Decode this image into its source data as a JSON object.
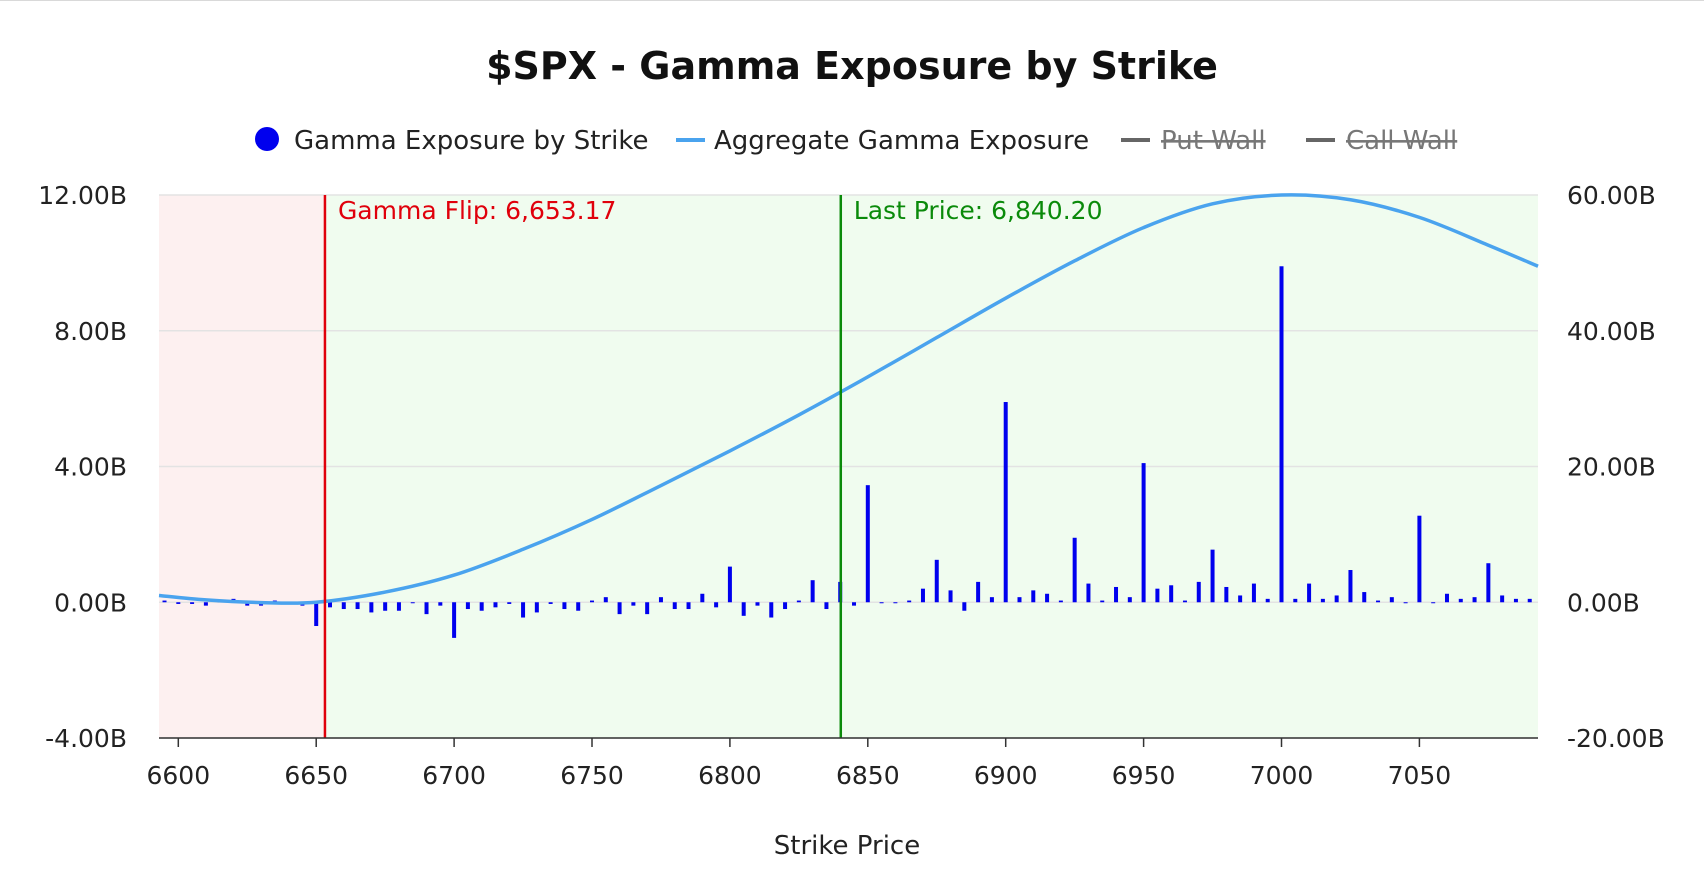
{
  "chart_data": {
    "type": "bar",
    "title": "$SPX - Gamma Exposure by Strike",
    "xlabel": "Strike Price",
    "ylabel_left": "",
    "ylabel_right": "",
    "xlim": [
      6593,
      7093
    ],
    "ylim_left": [
      -4,
      12
    ],
    "ylim_right": [
      -20,
      60
    ],
    "x_ticks": [
      6600,
      6650,
      6700,
      6750,
      6800,
      6850,
      6900,
      6950,
      7000,
      7050
    ],
    "x_tick_labels": [
      "6600",
      "6650",
      "6700",
      "6750",
      "6800",
      "6850",
      "6900",
      "6950",
      "7000",
      "7050"
    ],
    "y_left_ticks": [
      -4,
      0,
      4,
      8,
      12
    ],
    "y_left_tick_labels": [
      "-4.00B",
      "0.00B",
      "4.00B",
      "8.00B",
      "12.00B"
    ],
    "y_right_ticks": [
      -20,
      0,
      20,
      40,
      60
    ],
    "y_right_tick_labels": [
      "-20.00B",
      "0.00B",
      "20.00B",
      "40.00B",
      "60.00B"
    ],
    "grid": true,
    "legend_position": "top-center",
    "legend": [
      {
        "label": "Gamma Exposure by Strike",
        "symbol": "dot",
        "color": "#0000ee",
        "hidden": false
      },
      {
        "label": "Aggregate Gamma Exposure",
        "symbol": "line",
        "color": "#4aa3ee",
        "hidden": false
      },
      {
        "label": "Put Wall",
        "symbol": "line",
        "color": "#666666",
        "hidden": true
      },
      {
        "label": "Call Wall",
        "symbol": "line",
        "color": "#666666",
        "hidden": true
      }
    ],
    "series": [
      {
        "name": "Gamma Exposure by Strike",
        "axis": "left",
        "type": "bar",
        "color": "#0000ee",
        "x": [
          6595,
          6600,
          6605,
          6610,
          6615,
          6620,
          6625,
          6630,
          6635,
          6640,
          6645,
          6650,
          6655,
          6660,
          6665,
          6670,
          6675,
          6680,
          6685,
          6690,
          6695,
          6700,
          6705,
          6710,
          6715,
          6720,
          6725,
          6730,
          6735,
          6740,
          6745,
          6750,
          6755,
          6760,
          6765,
          6770,
          6775,
          6780,
          6785,
          6790,
          6795,
          6800,
          6805,
          6810,
          6815,
          6820,
          6825,
          6830,
          6835,
          6840,
          6845,
          6850,
          6855,
          6860,
          6865,
          6870,
          6875,
          6880,
          6885,
          6890,
          6895,
          6900,
          6905,
          6910,
          6915,
          6920,
          6925,
          6930,
          6935,
          6940,
          6945,
          6950,
          6955,
          6960,
          6965,
          6970,
          6975,
          6980,
          6985,
          6990,
          6995,
          7000,
          7005,
          7010,
          7015,
          7020,
          7025,
          7030,
          7035,
          7040,
          7045,
          7050,
          7055,
          7060,
          7065,
          7070,
          7075,
          7080,
          7085,
          7090
        ],
        "values": [
          0.05,
          -0.05,
          -0.05,
          -0.1,
          0.05,
          0.1,
          -0.1,
          -0.1,
          0.05,
          -0.05,
          -0.1,
          -0.7,
          -0.15,
          -0.2,
          -0.2,
          -0.3,
          -0.25,
          -0.25,
          0.0,
          -0.35,
          -0.1,
          -1.05,
          -0.2,
          -0.25,
          -0.15,
          -0.05,
          -0.45,
          -0.3,
          -0.05,
          -0.2,
          -0.25,
          0.05,
          0.15,
          -0.35,
          -0.1,
          -0.35,
          0.15,
          -0.2,
          -0.2,
          0.25,
          -0.15,
          1.05,
          -0.4,
          -0.1,
          -0.45,
          -0.2,
          0.05,
          0.65,
          -0.2,
          0.6,
          -0.1,
          3.45,
          0.0,
          0.0,
          0.05,
          0.4,
          1.25,
          0.35,
          -0.25,
          0.6,
          0.15,
          5.9,
          0.15,
          0.35,
          0.25,
          0.05,
          1.9,
          0.55,
          0.05,
          0.45,
          0.15,
          4.1,
          0.4,
          0.5,
          0.05,
          0.6,
          1.55,
          0.45,
          0.2,
          0.55,
          0.1,
          9.9,
          0.1,
          0.55,
          0.1,
          0.2,
          0.95,
          0.3,
          0.05,
          0.15,
          0.0,
          2.55,
          0.0,
          0.25,
          0.1,
          0.15,
          1.15,
          0.2,
          0.1,
          0.1
        ]
      },
      {
        "name": "Aggregate Gamma Exposure",
        "axis": "right",
        "type": "line",
        "color": "#4aa3ee",
        "x": [
          6593,
          6610,
          6630,
          6650,
          6675,
          6700,
          6725,
          6750,
          6775,
          6800,
          6825,
          6850,
          6875,
          6900,
          6925,
          6950,
          6975,
          7000,
          7025,
          7050,
          7075,
          7093
        ],
        "values": [
          1.0,
          0.35,
          -0.05,
          0.0,
          1.5,
          4.0,
          7.8,
          12.2,
          17.2,
          22.3,
          27.6,
          33.2,
          39.0,
          44.8,
          50.3,
          55.2,
          58.7,
          60.0,
          59.3,
          56.7,
          52.6,
          49.5
        ]
      }
    ],
    "annotations": [
      {
        "label": "Gamma Flip: 6,653.17",
        "x": 6653.17,
        "color": "#e0000b"
      },
      {
        "label": "Last Price: 6,840.20",
        "x": 6840.2,
        "color": "#0a8a0a"
      }
    ],
    "regions": [
      {
        "name": "negative-gamma",
        "x_from": 6593,
        "x_to": 6653.17,
        "color": "#fdf0f0"
      },
      {
        "name": "positive-gamma",
        "x_from": 6653.17,
        "x_to": 7093,
        "color": "#f0fcef"
      }
    ]
  }
}
